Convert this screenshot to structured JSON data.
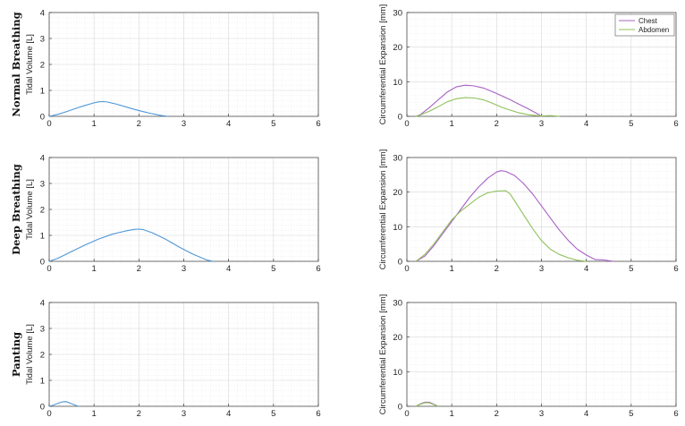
{
  "figure": {
    "rows": [
      {
        "label": "Normal Breathing"
      },
      {
        "label": "Deep Breathing"
      },
      {
        "label": "Panting"
      }
    ]
  },
  "colors": {
    "volume": "#4f97d8",
    "chest": "#a860c6",
    "abdomen": "#8fc05a"
  },
  "chart_data": [
    {
      "type": "line",
      "row": "Normal Breathing",
      "ylabel": "Tidal Volume [L]",
      "xlim": [
        0,
        6
      ],
      "ylim": [
        0,
        4
      ],
      "xticks": [
        0,
        1,
        2,
        3,
        4,
        5,
        6
      ],
      "yticks": [
        0,
        1,
        2,
        3,
        4
      ],
      "grid": true,
      "series": [
        {
          "x": [
            0,
            0.2,
            0.4,
            0.6,
            0.8,
            1.0,
            1.1,
            1.2,
            1.3,
            1.5,
            1.7,
            1.9,
            2.1,
            2.3,
            2.5,
            2.65
          ],
          "y": [
            0,
            0.08,
            0.19,
            0.31,
            0.42,
            0.52,
            0.56,
            0.57,
            0.55,
            0.47,
            0.37,
            0.27,
            0.18,
            0.1,
            0.03,
            0
          ]
        }
      ]
    },
    {
      "type": "line",
      "row": "Normal Breathing",
      "ylabel": "Circumferential Expansion [mm]",
      "xlim": [
        0,
        6
      ],
      "ylim": [
        0,
        30
      ],
      "xticks": [
        0,
        1,
        2,
        3,
        4,
        5,
        6
      ],
      "yticks": [
        0,
        10,
        20,
        30
      ],
      "grid": true,
      "legend": "top-right",
      "series": [
        {
          "name": "Chest",
          "x": [
            0.2,
            0.3,
            0.5,
            0.7,
            0.9,
            1.1,
            1.3,
            1.5,
            1.7,
            1.9,
            2.1,
            2.3,
            2.5,
            2.7,
            2.9,
            3.0
          ],
          "y": [
            0,
            0.5,
            2.5,
            4.8,
            7.0,
            8.5,
            9.0,
            8.8,
            8.2,
            7.2,
            6.0,
            4.8,
            3.5,
            2.2,
            0.8,
            0
          ]
        },
        {
          "name": "Abdomen",
          "x": [
            0.2,
            0.3,
            0.5,
            0.7,
            0.9,
            1.1,
            1.3,
            1.5,
            1.7,
            1.9,
            2.1,
            2.3,
            2.5,
            2.7,
            2.9,
            3.0,
            3.2,
            3.4
          ],
          "y": [
            0,
            0.4,
            1.5,
            2.8,
            4.2,
            5.1,
            5.4,
            5.3,
            4.8,
            3.8,
            2.7,
            1.8,
            1.0,
            0.5,
            0.2,
            0.1,
            0.2,
            0
          ]
        }
      ]
    },
    {
      "type": "line",
      "row": "Deep Breathing",
      "ylabel": "Tidal Volume [L]",
      "xlim": [
        0,
        6
      ],
      "ylim": [
        0,
        4
      ],
      "xticks": [
        0,
        1,
        2,
        3,
        4,
        5,
        6
      ],
      "yticks": [
        0,
        1,
        2,
        3,
        4
      ],
      "grid": true,
      "series": [
        {
          "x": [
            0,
            0.2,
            0.5,
            0.8,
            1.1,
            1.4,
            1.7,
            1.9,
            2.0,
            2.1,
            2.3,
            2.6,
            2.9,
            3.2,
            3.5,
            3.65
          ],
          "y": [
            0,
            0.12,
            0.38,
            0.63,
            0.86,
            1.04,
            1.17,
            1.23,
            1.24,
            1.22,
            1.1,
            0.85,
            0.55,
            0.28,
            0.06,
            0
          ]
        }
      ]
    },
    {
      "type": "line",
      "row": "Deep Breathing",
      "ylabel": "Circumferential Expansion [mm]",
      "xlim": [
        0,
        6
      ],
      "ylim": [
        0,
        30
      ],
      "xticks": [
        0,
        1,
        2,
        3,
        4,
        5,
        6
      ],
      "yticks": [
        0,
        10,
        20,
        30
      ],
      "grid": true,
      "series": [
        {
          "name": "Chest",
          "x": [
            0.2,
            0.4,
            0.6,
            0.8,
            1.0,
            1.2,
            1.4,
            1.6,
            1.8,
            2.0,
            2.1,
            2.2,
            2.4,
            2.6,
            2.8,
            3.0,
            3.2,
            3.4,
            3.6,
            3.8,
            4.0,
            4.2,
            4.4,
            4.6
          ],
          "y": [
            0,
            1.5,
            4.5,
            8.0,
            11.5,
            15.0,
            18.5,
            21.5,
            24.0,
            25.8,
            26.2,
            26.0,
            24.8,
            22.5,
            19.5,
            16.0,
            12.5,
            9.0,
            6.0,
            3.5,
            1.8,
            0.5,
            0.4,
            0
          ]
        },
        {
          "name": "Abdomen",
          "x": [
            0.2,
            0.4,
            0.6,
            0.8,
            1.0,
            1.2,
            1.4,
            1.6,
            1.8,
            2.0,
            2.2,
            2.3,
            2.4,
            2.6,
            2.8,
            3.0,
            3.2,
            3.4,
            3.6,
            3.8,
            4.0
          ],
          "y": [
            0,
            2.0,
            5.0,
            8.5,
            12.0,
            14.5,
            16.5,
            18.5,
            19.8,
            20.3,
            20.4,
            19.5,
            17.5,
            13.5,
            9.5,
            6.0,
            3.5,
            2.0,
            1.0,
            0.3,
            0
          ]
        }
      ]
    },
    {
      "type": "line",
      "row": "Panting",
      "ylabel": "Tidal Volume [L]",
      "xlim": [
        0,
        6
      ],
      "ylim": [
        0,
        4
      ],
      "xticks": [
        0,
        1,
        2,
        3,
        4,
        5,
        6
      ],
      "yticks": [
        0,
        1,
        2,
        3,
        4
      ],
      "grid": true,
      "series": [
        {
          "x": [
            0,
            0.1,
            0.2,
            0.3,
            0.35,
            0.4,
            0.5,
            0.6,
            0.65
          ],
          "y": [
            0,
            0.05,
            0.12,
            0.17,
            0.18,
            0.17,
            0.1,
            0.03,
            0
          ]
        }
      ]
    },
    {
      "type": "line",
      "row": "Panting",
      "ylabel": "Circumferential Expansion [mm]",
      "xlim": [
        0,
        6
      ],
      "ylim": [
        0,
        30
      ],
      "xticks": [
        0,
        1,
        2,
        3,
        4,
        5,
        6
      ],
      "yticks": [
        0,
        10,
        20,
        30
      ],
      "grid": true,
      "series": [
        {
          "name": "Chest",
          "x": [
            0.2,
            0.3,
            0.4,
            0.5,
            0.6,
            0.7
          ],
          "y": [
            0,
            0.7,
            1.2,
            1.2,
            0.6,
            0
          ]
        },
        {
          "name": "Abdomen",
          "x": [
            0.2,
            0.3,
            0.4,
            0.5,
            0.6,
            0.7
          ],
          "y": [
            0,
            0.6,
            1.0,
            1.0,
            0.5,
            0
          ]
        }
      ]
    }
  ]
}
